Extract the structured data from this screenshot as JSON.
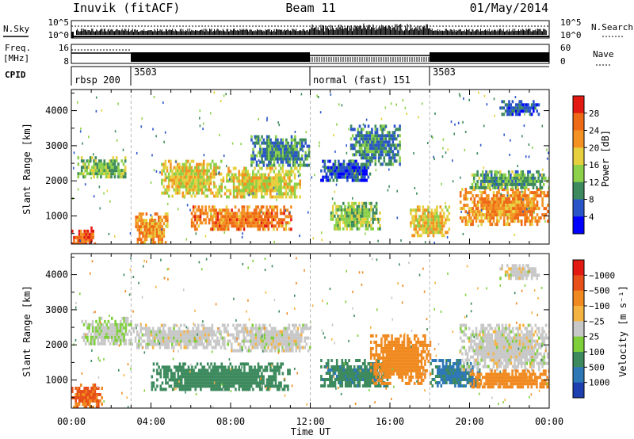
{
  "header": {
    "station": "Inuvik (fitACF)",
    "beam": "Beam 11",
    "date": "01/May/2014"
  },
  "top_panels": {
    "nsky_label": "N.Sky",
    "nsky_ticks": [
      "10^5",
      "10^0"
    ],
    "nsearch_label": "N.Search",
    "nsearch_ticks": [
      "10^5",
      "10^0"
    ],
    "freq_label_1": "Freq.",
    "freq_label_2": "[MHz]",
    "freq_ticks": [
      "16",
      "8"
    ],
    "nave_label": "Nave",
    "nave_ticks": [
      "60",
      "0"
    ],
    "cpid_label": "CPID",
    "cpid_segments": [
      {
        "label": "rbsp 200",
        "start": 0,
        "end": 3
      },
      {
        "label": "3503",
        "start": 3,
        "end": 12
      },
      {
        "label": "normal (fast) 151",
        "start": 12,
        "end": 18
      },
      {
        "label": "3503",
        "start": 18,
        "end": 24
      }
    ]
  },
  "chart_data": [
    {
      "type": "heatmap",
      "title": "",
      "xlabel": "Time UT",
      "ylabel": "Slant Range [km]",
      "xlim": [
        0,
        24
      ],
      "ylim": [
        200,
        4600
      ],
      "x_tick_labels": [
        "00:00",
        "04:00",
        "08:00",
        "12:00",
        "16:00",
        "20:00",
        "00:00"
      ],
      "y_ticks": [
        1000,
        2000,
        3000,
        4000
      ],
      "colorbar_label": "Power [dB]",
      "colorbar_ticks": [
        4,
        8,
        12,
        16,
        20,
        24,
        28
      ],
      "colorbar_colors": [
        "#0000ff",
        "#2a55c8",
        "#3d8a5e",
        "#8dd14a",
        "#e7d040",
        "#f39222",
        "#ee6a16",
        "#e31a12"
      ],
      "echo_regions": [
        {
          "x": [
            0.0,
            1.2
          ],
          "y": [
            200,
            700
          ],
          "level": 27
        },
        {
          "x": [
            0.3,
            2.8
          ],
          "y": [
            2100,
            2700
          ],
          "level": 13
        },
        {
          "x": [
            3.2,
            4.8
          ],
          "y": [
            250,
            1100
          ],
          "level": 22
        },
        {
          "x": [
            4.5,
            7.5
          ],
          "y": [
            1600,
            2600
          ],
          "level": 18
        },
        {
          "x": [
            6.0,
            11.0
          ],
          "y": [
            600,
            1300
          ],
          "level": 24
        },
        {
          "x": [
            7.5,
            11.5
          ],
          "y": [
            1500,
            2400
          ],
          "level": 17
        },
        {
          "x": [
            9.0,
            12.0
          ],
          "y": [
            2400,
            3300
          ],
          "level": 10
        },
        {
          "x": [
            13.0,
            15.5
          ],
          "y": [
            600,
            1400
          ],
          "level": 14
        },
        {
          "x": [
            12.5,
            15.0
          ],
          "y": [
            2000,
            2600
          ],
          "level": 6
        },
        {
          "x": [
            14.0,
            16.5
          ],
          "y": [
            2500,
            3600
          ],
          "level": 9
        },
        {
          "x": [
            17.0,
            19.0
          ],
          "y": [
            400,
            1300
          ],
          "level": 19
        },
        {
          "x": [
            19.5,
            24.0
          ],
          "y": [
            800,
            1800
          ],
          "level": 23
        },
        {
          "x": [
            20.0,
            24.0
          ],
          "y": [
            1800,
            2300
          ],
          "level": 12
        },
        {
          "x": [
            21.5,
            23.5
          ],
          "y": [
            3900,
            4300
          ],
          "level": 7
        }
      ]
    },
    {
      "type": "heatmap",
      "title": "",
      "xlabel": "Time UT",
      "ylabel": "Slant Range [km]",
      "xlim": [
        0,
        24
      ],
      "ylim": [
        200,
        4600
      ],
      "x_tick_labels": [
        "00:00",
        "04:00",
        "08:00",
        "12:00",
        "16:00",
        "20:00",
        "00:00"
      ],
      "y_ticks": [
        1000,
        2000,
        3000,
        4000
      ],
      "colorbar_label": "Velocity [m s⁻¹]",
      "colorbar_ticks": [
        "1000",
        "500",
        "100",
        "25",
        "−25",
        "−100",
        "−500",
        "−1000"
      ],
      "colorbar_colors": [
        "#1e3fb0",
        "#2e78b8",
        "#3d8a5e",
        "#7fcf3a",
        "#c8c8c8",
        "#f5b342",
        "#f08a20",
        "#e8501a",
        "#e31a12"
      ],
      "echo_regions": [
        {
          "x": [
            0.0,
            1.5
          ],
          "y": [
            200,
            900
          ],
          "level": -600
        },
        {
          "x": [
            0.5,
            3.0
          ],
          "y": [
            2000,
            2800
          ],
          "level": 20
        },
        {
          "x": [
            3.0,
            8.0
          ],
          "y": [
            1900,
            2600
          ],
          "level": 0
        },
        {
          "x": [
            4.0,
            11.0
          ],
          "y": [
            700,
            1500
          ],
          "level": 250
        },
        {
          "x": [
            8.0,
            12.0
          ],
          "y": [
            1800,
            2600
          ],
          "level": 0
        },
        {
          "x": [
            12.5,
            16.0
          ],
          "y": [
            800,
            1600
          ],
          "level": 400
        },
        {
          "x": [
            15.0,
            18.0
          ],
          "y": [
            900,
            2300
          ],
          "level": -250
        },
        {
          "x": [
            18.0,
            20.5
          ],
          "y": [
            800,
            1600
          ],
          "level": 600
        },
        {
          "x": [
            19.5,
            24.0
          ],
          "y": [
            1300,
            2600
          ],
          "level": 0
        },
        {
          "x": [
            20.0,
            24.0
          ],
          "y": [
            800,
            1300
          ],
          "level": -300
        },
        {
          "x": [
            21.5,
            23.5
          ],
          "y": [
            3900,
            4300
          ],
          "level": 0
        }
      ]
    }
  ]
}
